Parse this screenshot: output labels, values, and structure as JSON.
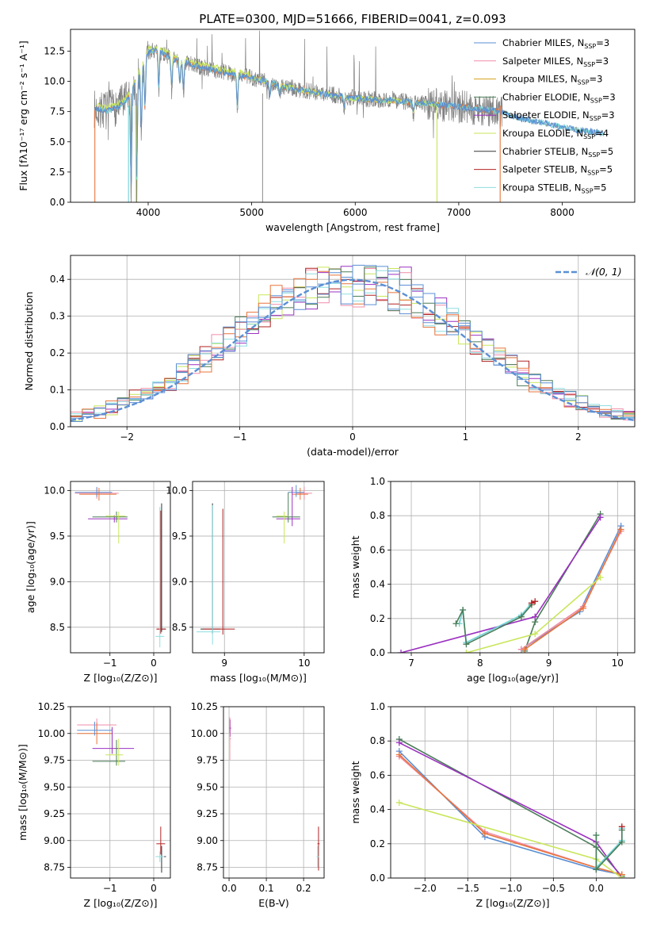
{
  "figure": {
    "title": "PLATE=0300, MJD=51666, FIBERID=0041, z=0.093"
  },
  "chart_data": [
    {
      "id": "spectrum",
      "type": "line",
      "xlabel": "wavelength [Angstrom, rest frame]",
      "ylabel": "Flux [fλ10⁻¹⁷ erg cm⁻² s⁻¹ A⁻¹]",
      "xlim": [
        3250,
        8700
      ],
      "ylim": [
        0,
        14.3
      ],
      "xticks": [
        4000,
        5000,
        6000,
        7000,
        8000
      ],
      "yticks": [
        0.0,
        2.5,
        5.0,
        7.5,
        10.0,
        12.5
      ],
      "grid": false,
      "legend_position": "top-right",
      "legend": [
        {
          "label": "Chabrier MILES, N",
          "sub": "SSP",
          "suffix": "=3",
          "color": "#5b8fd4",
          "style": "line"
        },
        {
          "label": "Salpeter MILES, N",
          "sub": "SSP",
          "suffix": "=3",
          "color": "#f08ca8",
          "style": "line"
        },
        {
          "label": "Kroupa MILES, N",
          "sub": "SSP",
          "suffix": "=3",
          "color": "#d4a017",
          "style": "line"
        },
        {
          "label": "Chabrier ELODIE, N",
          "sub": "SSP",
          "suffix": "=3",
          "color": "#4a7c59",
          "style": "line"
        },
        {
          "label": "Salpeter ELODIE, N",
          "sub": "SSP",
          "suffix": "=3",
          "color": "#9b30c0",
          "style": "line"
        },
        {
          "label": "Kroupa ELODIE, N",
          "sub": "SSP",
          "suffix": "=4",
          "color": "#c8e65a",
          "style": "line"
        },
        {
          "label": "Chabrier STELIB, N",
          "sub": "SSP",
          "suffix": "=5",
          "color": "#333333",
          "style": "line"
        },
        {
          "label": "Salpeter STELIB, N",
          "sub": "SSP",
          "suffix": "=5",
          "color": "#b22222",
          "style": "line"
        },
        {
          "label": "Kroupa STELIB, N",
          "sub": "SSP",
          "suffix": "=5",
          "color": "#8fdde0",
          "style": "line"
        }
      ],
      "data_color": "#808080",
      "model_colors": [
        "#e8743b",
        "#6fd3d8"
      ],
      "continuum": {
        "x": [
          3500,
          3600,
          3700,
          3800,
          3900,
          4000,
          4100,
          4200,
          4300,
          4400,
          4500,
          4700,
          5000,
          5300,
          5600,
          6000,
          6400,
          6800,
          7000,
          7200,
          7400,
          7600,
          7800,
          8000,
          8200,
          8400
        ],
        "y": [
          7.7,
          7.6,
          7.9,
          8.5,
          10.5,
          12.4,
          12.6,
          12.0,
          11.6,
          11.5,
          11.2,
          10.8,
          10.3,
          9.6,
          9.1,
          8.6,
          8.4,
          8.1,
          7.9,
          7.7,
          7.5,
          6.9,
          6.6,
          6.2,
          5.9,
          5.7
        ]
      },
      "absorption_lines": [
        {
          "x": 3835,
          "y": 0.2
        },
        {
          "x": 3889,
          "y": 0.4
        },
        {
          "x": 3934,
          "y": 5.1
        },
        {
          "x": 3969,
          "y": 7.2
        },
        {
          "x": 4102,
          "y": 9.0
        },
        {
          "x": 4227,
          "y": 9.2
        },
        {
          "x": 4305,
          "y": 9.6
        },
        {
          "x": 4341,
          "y": 8.8
        },
        {
          "x": 4861,
          "y": 7.5
        },
        {
          "x": 5175,
          "y": 8.7
        },
        {
          "x": 5270,
          "y": 8.8
        },
        {
          "x": 5893,
          "y": 7.8
        },
        {
          "x": 6563,
          "y": 7.2
        }
      ],
      "model_gaps": [
        {
          "x": 3810,
          "color": "#6fd3d8"
        },
        {
          "x": 3880,
          "color": "#c8e65a"
        },
        {
          "x": 6790,
          "color": "#c8e65a"
        },
        {
          "x": 7400,
          "color": "#e8743b"
        }
      ]
    },
    {
      "id": "residuals",
      "type": "step",
      "xlabel": "(data-model)/error",
      "ylabel": "Normed distribution",
      "xlim": [
        -2.5,
        2.5
      ],
      "ylim": [
        0,
        0.465
      ],
      "xticks": [
        -2,
        -1,
        0,
        1,
        2
      ],
      "yticks": [
        0.0,
        0.1,
        0.2,
        0.3,
        0.4
      ],
      "grid": true,
      "legend_position": "top-right",
      "gaussian_label": "𝒩(0, 1)",
      "gaussian_color": "#5b8fd4"
    },
    {
      "id": "age_vs_z",
      "type": "errorbar",
      "xlabel": "Z [log₁₀(Z/Z⊙)]",
      "ylabel": "age  [log₁₀(age/yr)]",
      "xlim": [
        -1.9,
        0.38
      ],
      "ylim": [
        8.22,
        10.1
      ],
      "xticks": [
        -1,
        0
      ],
      "yticks": [
        8.5,
        9.0,
        9.5,
        10.0
      ],
      "grid": true
    },
    {
      "id": "age_vs_mass",
      "type": "errorbar",
      "xlabel": "mass [log₁₀(M/M⊙)]",
      "ylabel": "",
      "xlim": [
        8.6,
        10.25
      ],
      "ylim": [
        8.22,
        10.1
      ],
      "xticks": [
        9,
        10
      ],
      "yticks": [
        8.5,
        9.0,
        9.5,
        10.0
      ],
      "grid": true
    },
    {
      "id": "weight_vs_age",
      "type": "line",
      "xlabel": "age  [log₁₀(age/yr)]",
      "ylabel": "mass weight",
      "xlim": [
        6.7,
        10.25
      ],
      "ylim": [
        0,
        1.0
      ],
      "xticks": [
        7,
        8,
        9,
        10
      ],
      "yticks": [
        0.0,
        0.2,
        0.4,
        0.6,
        0.8,
        1.0
      ],
      "grid": true,
      "series": [
        {
          "color": "#4a7c59",
          "x": [
            8.65,
            8.8,
            9.75
          ],
          "y": [
            0.01,
            0.18,
            0.81
          ]
        },
        {
          "color": "#9b30c0",
          "x": [
            6.85,
            8.8,
            9.75
          ],
          "y": [
            0.0,
            0.21,
            0.79
          ]
        },
        {
          "color": "#5b8fd4",
          "x": [
            8.6,
            9.45,
            10.05
          ],
          "y": [
            0.02,
            0.24,
            0.74
          ]
        },
        {
          "color": "#f08ca8",
          "x": [
            8.6,
            9.5,
            10.05
          ],
          "y": [
            0.02,
            0.27,
            0.71
          ]
        },
        {
          "color": "#e8743b",
          "x": [
            8.65,
            9.5,
            10.05
          ],
          "y": [
            0.02,
            0.26,
            0.72
          ]
        },
        {
          "color": "#c8e65a",
          "x": [
            7.8,
            8.8,
            9.75
          ],
          "y": [
            0.0,
            0.11,
            0.44
          ]
        },
        {
          "color": "#6fd3d8",
          "x": [
            7.7,
            7.75,
            7.8,
            8.6,
            8.75
          ],
          "y": [
            0.17,
            0.25,
            0.06,
            0.22,
            0.29
          ]
        },
        {
          "color": "#4a7c59",
          "x": [
            7.65,
            7.75,
            7.8,
            8.6,
            8.75
          ],
          "y": [
            0.17,
            0.25,
            0.05,
            0.21,
            0.28
          ]
        },
        {
          "color": "#b22222",
          "x": [
            8.75,
            8.8
          ],
          "y": [
            0.29,
            0.3
          ]
        }
      ]
    },
    {
      "id": "mass_vs_z",
      "type": "errorbar",
      "xlabel": "Z [log₁₀(Z/Z⊙)]",
      "ylabel": "mass [log₁₀(M/M⊙)]",
      "xlim": [
        -1.9,
        0.38
      ],
      "ylim": [
        8.65,
        10.25
      ],
      "xticks": [
        -1,
        0
      ],
      "yticks": [
        8.75,
        9.0,
        9.25,
        9.5,
        9.75,
        10.0,
        10.25
      ],
      "grid": true
    },
    {
      "id": "mass_vs_ebv",
      "type": "errorbar",
      "xlabel": "E(B-V)",
      "ylabel": "",
      "xlim": [
        -0.015,
        0.255
      ],
      "ylim": [
        8.65,
        10.25
      ],
      "xticks": [
        0.0,
        0.1,
        0.2
      ],
      "yticks": [
        8.75,
        9.0,
        9.25,
        9.5,
        9.75,
        10.0,
        10.25
      ],
      "grid": true
    },
    {
      "id": "weight_vs_z",
      "type": "line",
      "xlabel": "Z [log₁₀(Z/Z⊙)]",
      "ylabel": "mass weight",
      "xlim": [
        -2.4,
        0.45
      ],
      "ylim": [
        0,
        1.0
      ],
      "xticks": [
        -2.0,
        -1.5,
        -1.0,
        -0.5,
        0.0
      ],
      "yticks": [
        0.0,
        0.2,
        0.4,
        0.6,
        0.8,
        1.0
      ],
      "grid": true,
      "series": [
        {
          "color": "#4a7c59",
          "x": [
            -2.3,
            0.0,
            0.3
          ],
          "y": [
            0.81,
            0.18,
            0.01
          ]
        },
        {
          "color": "#9b30c0",
          "x": [
            -2.3,
            0.0,
            0.3
          ],
          "y": [
            0.79,
            0.21,
            0.0
          ]
        },
        {
          "color": "#5b8fd4",
          "x": [
            -2.3,
            -1.3,
            0.0,
            0.3
          ],
          "y": [
            0.74,
            0.24,
            0.05,
            0.02
          ]
        },
        {
          "color": "#f08ca8",
          "x": [
            -2.3,
            -1.3,
            0.0,
            0.3
          ],
          "y": [
            0.71,
            0.27,
            0.06,
            0.02
          ]
        },
        {
          "color": "#e8743b",
          "x": [
            -2.3,
            -1.3,
            0.0,
            0.3
          ],
          "y": [
            0.72,
            0.26,
            0.06,
            0.02
          ]
        },
        {
          "color": "#c8e65a",
          "x": [
            -2.3,
            0.0,
            0.3
          ],
          "y": [
            0.44,
            0.11,
            0.0
          ]
        },
        {
          "color": "#6fd3d8",
          "x": [
            0.0,
            0.0,
            0.3,
            0.3
          ],
          "y": [
            0.25,
            0.06,
            0.22,
            0.29
          ]
        },
        {
          "color": "#4a7c59",
          "x": [
            0.0,
            0.0,
            0.3,
            0.3
          ],
          "y": [
            0.25,
            0.05,
            0.21,
            0.28
          ]
        },
        {
          "color": "#b22222",
          "x": [
            0.3
          ],
          "y": [
            0.3
          ]
        }
      ]
    }
  ]
}
